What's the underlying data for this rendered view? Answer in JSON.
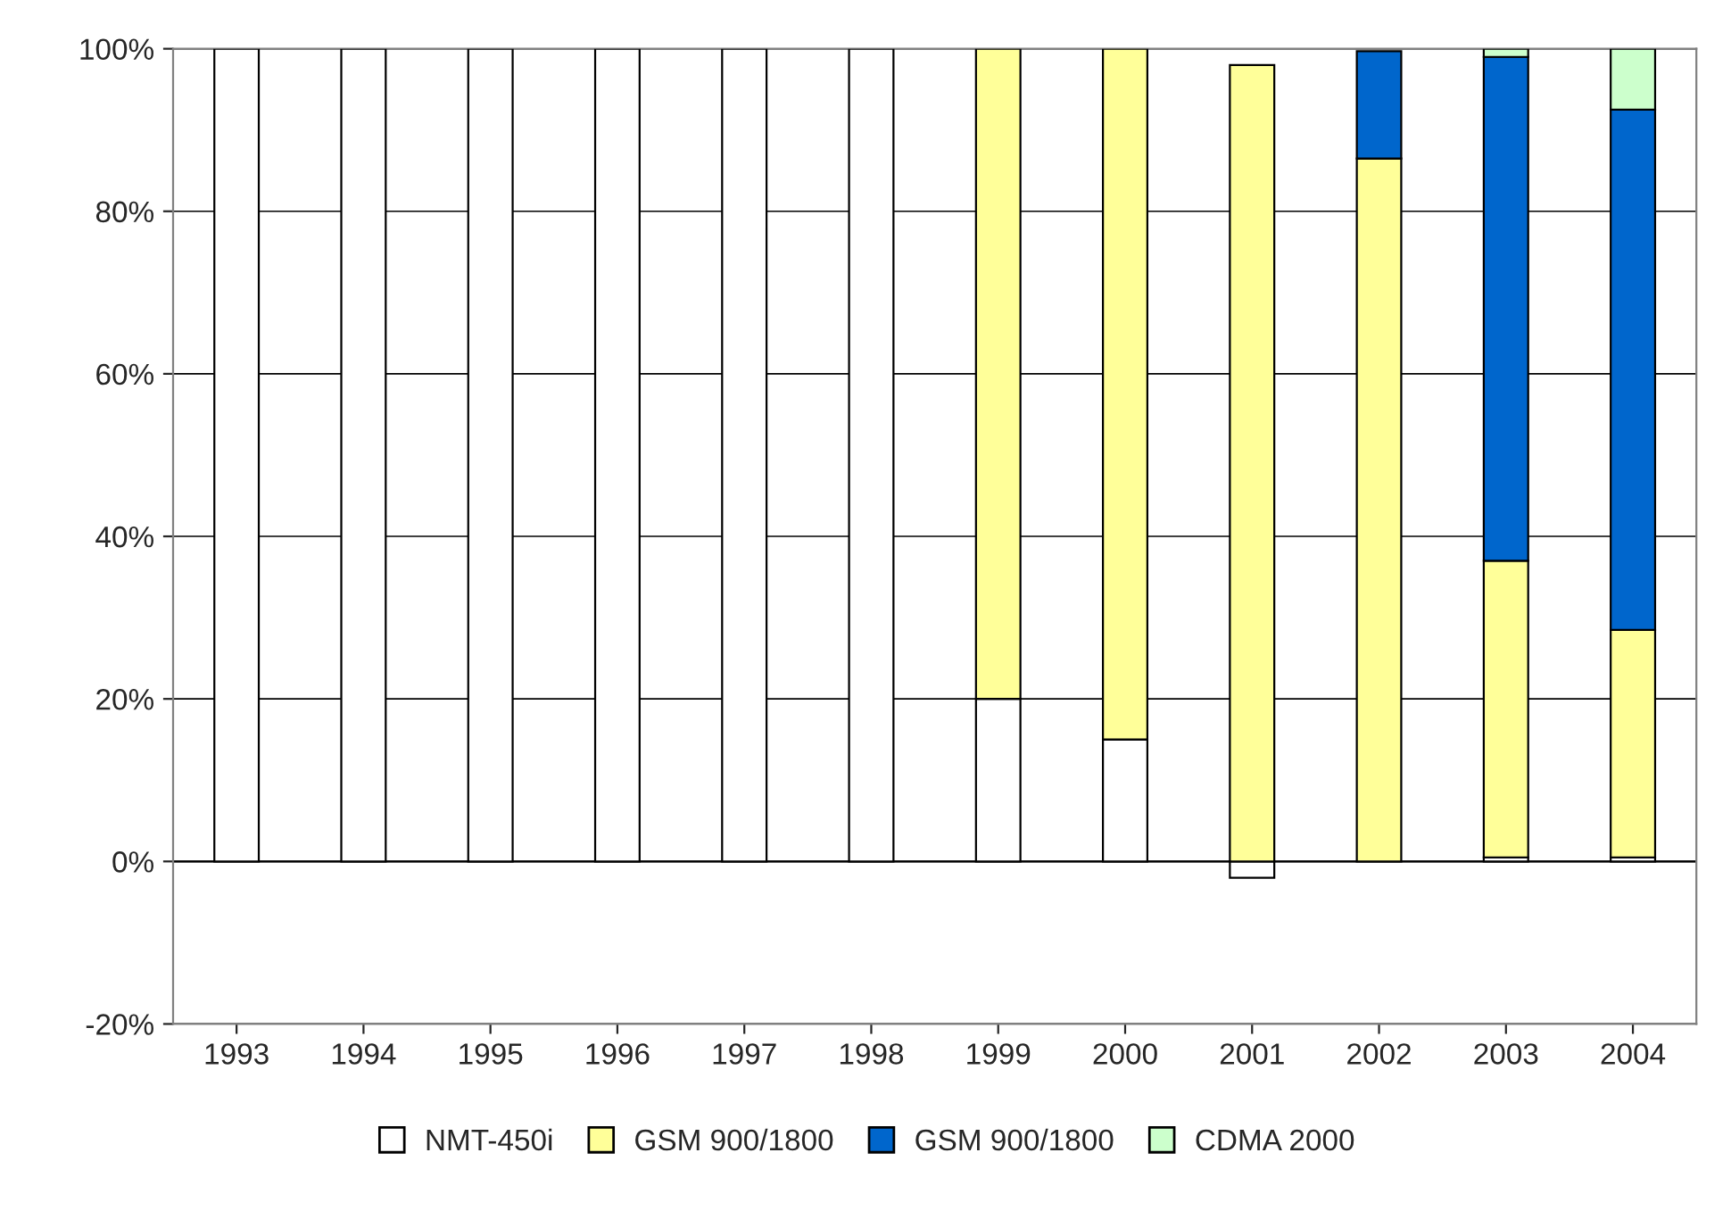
{
  "chart_data": {
    "type": "bar",
    "stacked": true,
    "categories": [
      "1993",
      "1994",
      "1995",
      "1996",
      "1997",
      "1998",
      "1999",
      "2000",
      "2001",
      "2002",
      "2003",
      "2004"
    ],
    "series": [
      {
        "name": "NMT-450i",
        "color": "#ffffff",
        "values": [
          100,
          100,
          100,
          100,
          100,
          100,
          20,
          15,
          -2,
          null,
          0.5,
          0.5
        ]
      },
      {
        "name": "GSM 900/1800",
        "color": "#ffff99",
        "values": [
          null,
          null,
          null,
          null,
          null,
          null,
          80,
          85,
          98,
          86.5,
          36.5,
          28
        ]
      },
      {
        "name": "GSM 900/1800",
        "color": "#0066cc",
        "values": [
          null,
          null,
          null,
          null,
          null,
          null,
          null,
          null,
          null,
          13.2,
          62,
          64
        ]
      },
      {
        "name": "CDMA 2000",
        "color": "#ccffcc",
        "values": [
          null,
          null,
          null,
          null,
          null,
          null,
          null,
          null,
          null,
          null,
          1,
          7.5
        ]
      }
    ],
    "ylim": [
      -20,
      100
    ],
    "yticks": [
      {
        "value": -20,
        "label": "-20%"
      },
      {
        "value": 0,
        "label": "0%"
      },
      {
        "value": 20,
        "label": "20%"
      },
      {
        "value": 40,
        "label": "40%"
      },
      {
        "value": 60,
        "label": "60%"
      },
      {
        "value": 80,
        "label": "80%"
      },
      {
        "value": 100,
        "label": "100%"
      }
    ],
    "grid": "y",
    "legend": "bottom",
    "marker": "square"
  }
}
